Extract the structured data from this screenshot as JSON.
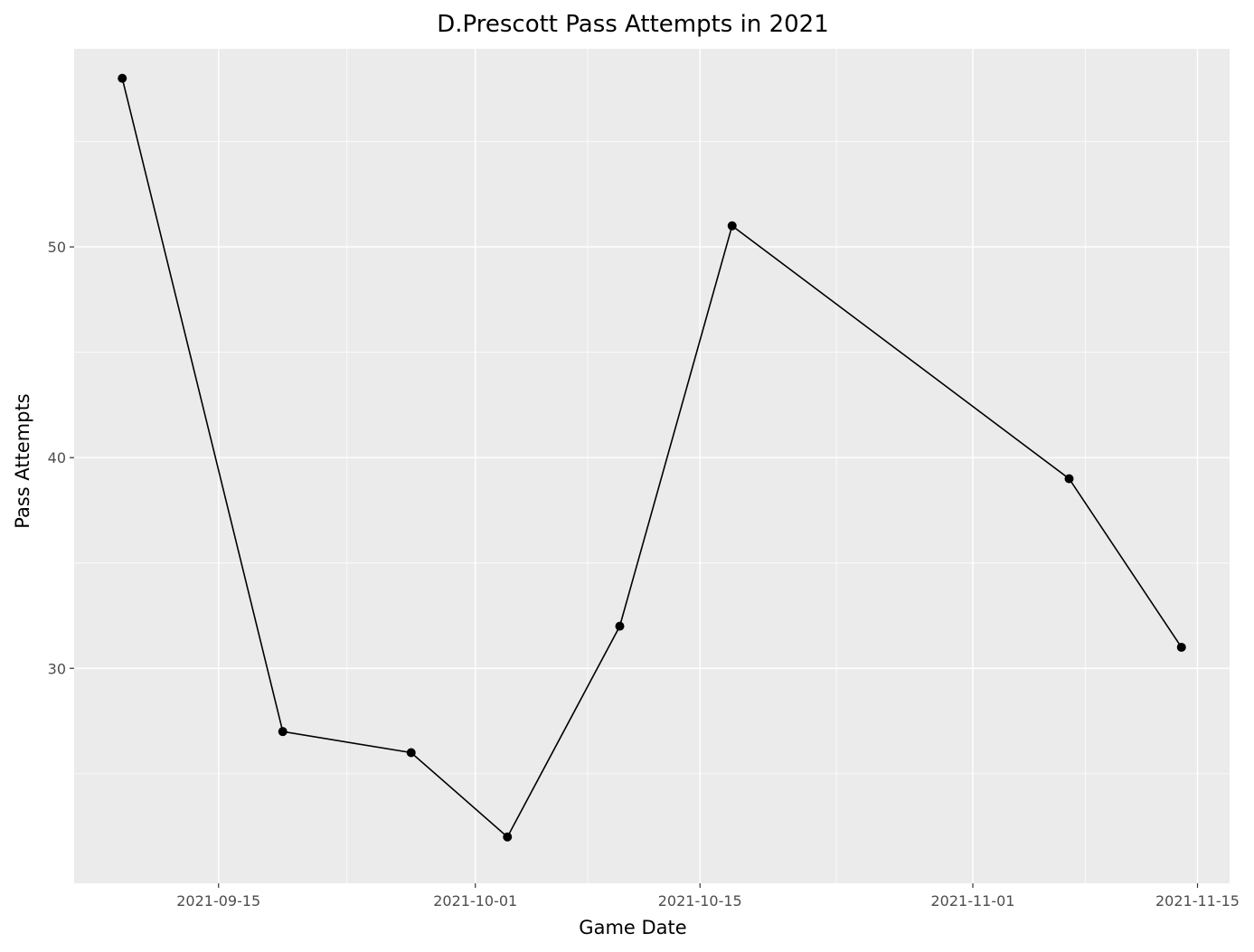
{
  "chart_data": {
    "type": "line",
    "title": "D.Prescott Pass Attempts in 2021",
    "xlabel": "Game Date",
    "ylabel": "Pass Attempts",
    "x_tick_labels": [
      "2021-09-15",
      "2021-10-01",
      "2021-10-15",
      "2021-11-01",
      "2021-11-15"
    ],
    "y_tick_labels": [
      "30",
      "40",
      "50"
    ],
    "y_ticks": [
      30,
      40,
      50
    ],
    "xlim": [
      "2021-09-06",
      "2021-11-17"
    ],
    "ylim": [
      19.8,
      59.4
    ],
    "grid": true,
    "series": [
      {
        "points": [
          {
            "x": "2021-09-09",
            "y": 58
          },
          {
            "x": "2021-09-19",
            "y": 27
          },
          {
            "x": "2021-09-27",
            "y": 26
          },
          {
            "x": "2021-10-03",
            "y": 22
          },
          {
            "x": "2021-10-10",
            "y": 32
          },
          {
            "x": "2021-10-17",
            "y": 51
          },
          {
            "x": "2021-11-07",
            "y": 39
          },
          {
            "x": "2021-11-14",
            "y": 31
          }
        ]
      }
    ],
    "colors": {
      "panel": "#ebebeb",
      "grid": "#ffffff",
      "line": "#000000",
      "point": "#000000"
    }
  }
}
